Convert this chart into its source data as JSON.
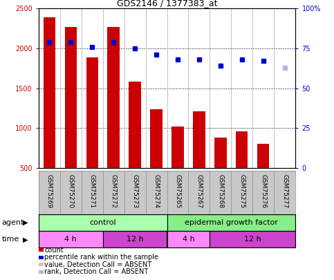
{
  "title": "GDS2146 / 1377383_at",
  "samples": [
    "GSM75269",
    "GSM75270",
    "GSM75271",
    "GSM75272",
    "GSM75273",
    "GSM75274",
    "GSM75265",
    "GSM75267",
    "GSM75268",
    "GSM75275",
    "GSM75276",
    "GSM75277"
  ],
  "bar_values": [
    2390,
    2265,
    1890,
    2270,
    1580,
    1240,
    1020,
    1210,
    880,
    960,
    800,
    500
  ],
  "bar_absent": [
    false,
    false,
    false,
    false,
    false,
    false,
    false,
    false,
    false,
    false,
    false,
    true
  ],
  "rank_values": [
    79,
    79,
    76,
    79,
    75,
    71,
    68,
    68,
    64,
    68,
    67,
    63
  ],
  "rank_absent": [
    false,
    false,
    false,
    false,
    false,
    false,
    false,
    false,
    false,
    false,
    false,
    true
  ],
  "ylim_left": [
    500,
    2500
  ],
  "ylim_right": [
    0,
    100
  ],
  "left_yticks": [
    500,
    1000,
    1500,
    2000,
    2500
  ],
  "left_yticklabels": [
    "500",
    "1000",
    "1500",
    "2000",
    "2500"
  ],
  "right_yticks": [
    0,
    25,
    50,
    75,
    100
  ],
  "right_yticklabels": [
    "0",
    "25",
    "50",
    "75",
    "100%"
  ],
  "bar_color": "#cc0000",
  "bar_absent_color": "#ffb0b0",
  "rank_color": "#0000cc",
  "rank_absent_color": "#b0b8d8",
  "agent_control_label": "control",
  "agent_egf_label": "epidermal growth factor",
  "agent_control_color": "#aaffaa",
  "agent_egf_color": "#88ee88",
  "time_4h_light_color": "#ff88ff",
  "time_12h_dark_color": "#cc44cc",
  "agent_label": "agent",
  "time_label": "time",
  "legend_items": [
    {
      "label": "count",
      "color": "#cc0000"
    },
    {
      "label": "percentile rank within the sample",
      "color": "#0000cc"
    },
    {
      "label": "value, Detection Call = ABSENT",
      "color": "#ffb0b0"
    },
    {
      "label": "rank, Detection Call = ABSENT",
      "color": "#b0b8d8"
    }
  ],
  "time_segments": [
    {
      "start": 0,
      "end": 3,
      "label": "4 h",
      "light": true
    },
    {
      "start": 3,
      "end": 6,
      "label": "12 h",
      "light": false
    },
    {
      "start": 6,
      "end": 8,
      "label": "4 h",
      "light": true
    },
    {
      "start": 8,
      "end": 12,
      "label": "12 h",
      "light": false
    }
  ]
}
